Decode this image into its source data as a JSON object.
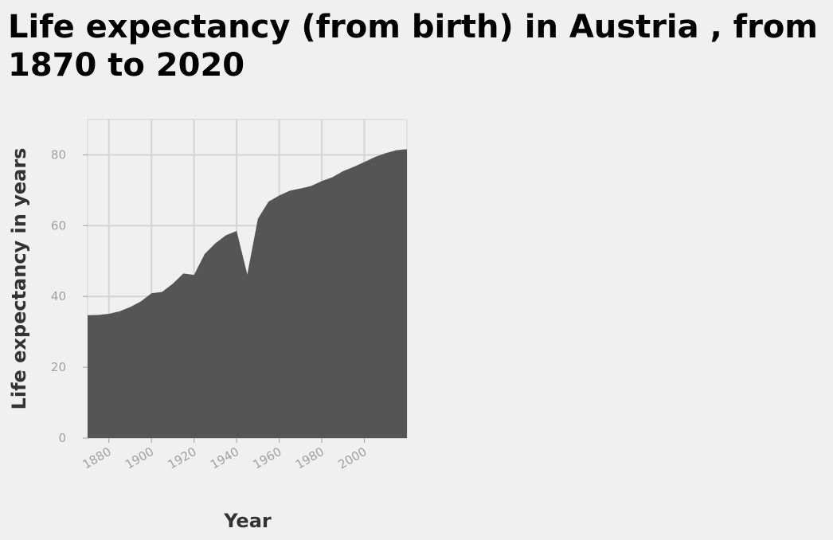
{
  "chart_data": {
    "type": "area",
    "title": "Life expectancy (from birth) in Austria , from 1870 to 2020",
    "xlabel": "Year",
    "ylabel": "Life expectancy in years",
    "xlim": [
      1870,
      2020
    ],
    "ylim": [
      0,
      90
    ],
    "x_ticks": [
      1880,
      1900,
      1920,
      1940,
      1960,
      1980,
      2000
    ],
    "y_ticks": [
      0,
      20,
      40,
      60,
      80
    ],
    "grid": true,
    "legend": "none",
    "colors": {
      "area": "#555555",
      "grid": "#d4d4d4",
      "background": "#f0f0f0",
      "ticks": "#a0a0a0"
    },
    "series": [
      {
        "x": [
          1870,
          1875,
          1880,
          1885,
          1890,
          1895,
          1900,
          1905,
          1910,
          1915,
          1920,
          1925,
          1930,
          1935,
          1940,
          1945,
          1950,
          1955,
          1960,
          1965,
          1970,
          1975,
          1980,
          1985,
          1990,
          1995,
          2000,
          2005,
          2010,
          2015,
          2020
        ],
        "y": [
          34.7,
          34.8,
          35.1,
          35.8,
          37.0,
          38.6,
          40.9,
          41.3,
          43.6,
          46.5,
          46.1,
          52.0,
          55.0,
          57.3,
          58.5,
          46.2,
          62.0,
          66.8,
          68.5,
          69.9,
          70.5,
          71.2,
          72.6,
          73.7,
          75.4,
          76.6,
          78.0,
          79.4,
          80.5,
          81.3,
          81.6
        ]
      }
    ]
  }
}
